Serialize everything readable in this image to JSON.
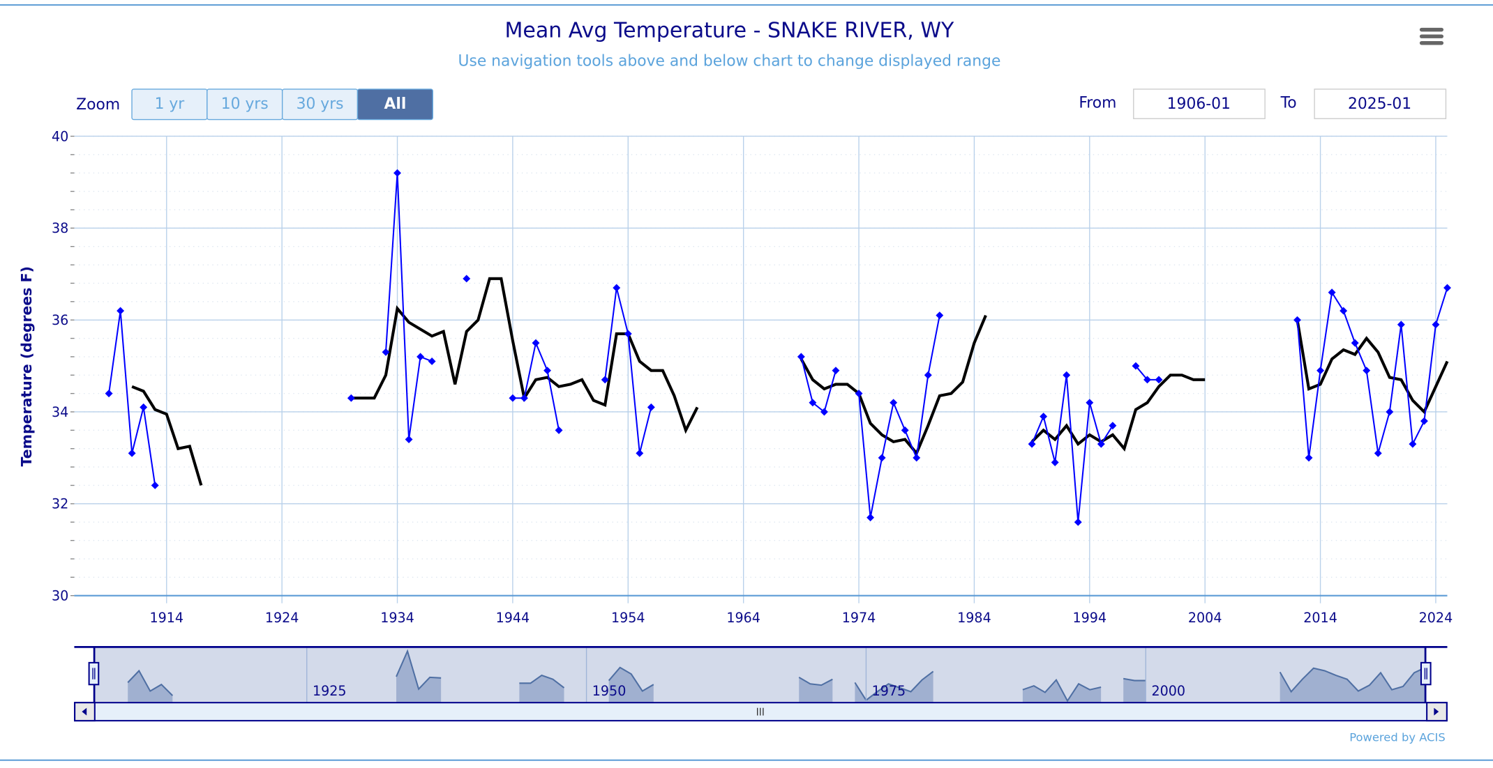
{
  "chart_data": {
    "type": "line",
    "title": "Mean Avg Temperature - SNAKE RIVER, WY",
    "subtitle": "Use navigation tools above and below chart to change displayed range",
    "ylabel": "Temperature (degrees F)",
    "xlabel": "",
    "ylim": [
      30,
      40
    ],
    "xlim": [
      1906,
      2025
    ],
    "yticks": [
      "30",
      "32",
      "34",
      "36",
      "38",
      "40"
    ],
    "xticks": [
      "1914",
      "1924",
      "1934",
      "1944",
      "1954",
      "1964",
      "1974",
      "1984",
      "1994",
      "2004",
      "2014",
      "2024"
    ],
    "grid": true,
    "series": [
      {
        "name": "Annual mean",
        "color": "#0000ff",
        "marker": "diamond",
        "segments": [
          [
            [
              1909,
              34.4
            ],
            [
              1910,
              36.2
            ],
            [
              1911,
              33.1
            ],
            [
              1912,
              34.1
            ],
            [
              1913,
              32.4
            ]
          ],
          [
            [
              1930,
              34.3
            ]
          ],
          [
            [
              1933,
              35.3
            ],
            [
              1934,
              39.2
            ],
            [
              1935,
              33.4
            ],
            [
              1936,
              35.2
            ],
            [
              1937,
              35.1
            ]
          ],
          [
            [
              1940,
              36.9
            ]
          ],
          [
            [
              1944,
              34.3
            ],
            [
              1945,
              34.3
            ],
            [
              1946,
              35.5
            ],
            [
              1947,
              34.9
            ],
            [
              1948,
              33.6
            ]
          ],
          [
            [
              1952,
              34.7
            ],
            [
              1953,
              36.7
            ],
            [
              1954,
              35.7
            ],
            [
              1955,
              33.1
            ],
            [
              1956,
              34.1
            ]
          ],
          [
            [
              1969,
              35.2
            ],
            [
              1970,
              34.2
            ],
            [
              1971,
              34.0
            ],
            [
              1972,
              34.9
            ]
          ],
          [
            [
              1974,
              34.4
            ],
            [
              1975,
              31.7
            ],
            [
              1976,
              33.0
            ],
            [
              1977,
              34.2
            ],
            [
              1978,
              33.6
            ],
            [
              1979,
              33.0
            ],
            [
              1980,
              34.8
            ],
            [
              1981,
              36.1
            ]
          ],
          [
            [
              1989,
              33.3
            ],
            [
              1990,
              33.9
            ],
            [
              1991,
              32.9
            ],
            [
              1992,
              34.8
            ],
            [
              1993,
              31.6
            ],
            [
              1994,
              34.2
            ],
            [
              1995,
              33.3
            ],
            [
              1996,
              33.7
            ]
          ],
          [
            [
              1998,
              35.0
            ],
            [
              1999,
              34.7
            ],
            [
              2000,
              34.7
            ]
          ],
          [
            [
              2012,
              36.0
            ],
            [
              2013,
              33.0
            ],
            [
              2014,
              34.9
            ],
            [
              2015,
              36.6
            ],
            [
              2016,
              36.2
            ],
            [
              2017,
              35.5
            ],
            [
              2018,
              34.9
            ],
            [
              2019,
              33.1
            ],
            [
              2020,
              34.0
            ],
            [
              2021,
              35.9
            ],
            [
              2022,
              33.3
            ],
            [
              2023,
              33.8
            ],
            [
              2024,
              35.9
            ],
            [
              2025,
              36.7
            ]
          ]
        ]
      },
      {
        "name": "Running mean",
        "color": "#000000",
        "marker": "none",
        "segments": [
          [
            [
              1911,
              34.55
            ],
            [
              1912,
              34.45
            ],
            [
              1913,
              34.05
            ],
            [
              1914,
              33.95
            ],
            [
              1915,
              33.2
            ],
            [
              1916,
              33.25
            ],
            [
              1917,
              32.4
            ]
          ],
          [
            [
              1930,
              34.3
            ],
            [
              1931,
              34.3
            ],
            [
              1932,
              34.3
            ],
            [
              1933,
              34.8
            ],
            [
              1934,
              36.25
            ],
            [
              1935,
              35.95
            ],
            [
              1936,
              35.8
            ],
            [
              1937,
              35.65
            ],
            [
              1938,
              35.75
            ],
            [
              1939,
              34.6
            ],
            [
              1940,
              35.75
            ],
            [
              1941,
              36.0
            ],
            [
              1942,
              36.9
            ],
            [
              1943,
              36.9
            ],
            [
              1944,
              35.55
            ],
            [
              1945,
              34.3
            ],
            [
              1946,
              34.7
            ],
            [
              1947,
              34.75
            ],
            [
              1948,
              34.55
            ],
            [
              1949,
              34.6
            ],
            [
              1950,
              34.7
            ],
            [
              1951,
              34.25
            ],
            [
              1952,
              34.15
            ],
            [
              1953,
              35.7
            ],
            [
              1954,
              35.7
            ],
            [
              1955,
              35.1
            ],
            [
              1956,
              34.9
            ],
            [
              1957,
              34.9
            ],
            [
              1958,
              34.35
            ],
            [
              1959,
              33.6
            ],
            [
              1960,
              34.1
            ]
          ],
          [
            [
              1969,
              35.15
            ],
            [
              1970,
              34.7
            ],
            [
              1971,
              34.5
            ],
            [
              1972,
              34.6
            ],
            [
              1973,
              34.6
            ],
            [
              1974,
              34.4
            ],
            [
              1975,
              33.75
            ],
            [
              1976,
              33.5
            ],
            [
              1977,
              33.35
            ],
            [
              1978,
              33.4
            ],
            [
              1979,
              33.1
            ],
            [
              1980,
              33.7
            ],
            [
              1981,
              34.35
            ],
            [
              1982,
              34.4
            ],
            [
              1983,
              34.65
            ],
            [
              1984,
              35.5
            ],
            [
              1985,
              36.1
            ]
          ],
          [
            [
              1989,
              33.35
            ],
            [
              1990,
              33.6
            ],
            [
              1991,
              33.4
            ],
            [
              1992,
              33.7
            ],
            [
              1993,
              33.3
            ],
            [
              1994,
              33.5
            ],
            [
              1995,
              33.35
            ],
            [
              1996,
              33.5
            ],
            [
              1997,
              33.2
            ],
            [
              1998,
              34.05
            ],
            [
              1999,
              34.2
            ],
            [
              2000,
              34.55
            ],
            [
              2001,
              34.8
            ],
            [
              2002,
              34.8
            ],
            [
              2003,
              34.7
            ],
            [
              2004,
              34.7
            ]
          ],
          [
            [
              2012,
              36.0
            ],
            [
              2013,
              34.5
            ],
            [
              2014,
              34.6
            ],
            [
              2015,
              35.15
            ],
            [
              2016,
              35.35
            ],
            [
              2017,
              35.25
            ],
            [
              2018,
              35.6
            ],
            [
              2019,
              35.3
            ],
            [
              2020,
              34.75
            ],
            [
              2021,
              34.7
            ],
            [
              2022,
              34.25
            ],
            [
              2023,
              34.0
            ],
            [
              2024,
              34.55
            ],
            [
              2025,
              35.1
            ]
          ]
        ]
      }
    ],
    "navigator": {
      "labels": [
        "1925",
        "1950",
        "1975",
        "2000"
      ],
      "label_years": [
        1925,
        1950,
        1975,
        2000
      ],
      "range": [
        1906,
        2025
      ]
    }
  },
  "toolbar": {
    "zoom_label": "Zoom",
    "buttons": [
      "1 yr",
      "10 yrs",
      "30 yrs",
      "All"
    ],
    "active_button": "All",
    "from_label": "From",
    "from_value": "1906-01",
    "to_label": "To",
    "to_value": "2025-01"
  },
  "credits": "Powered by ACIS",
  "colors": {
    "title": "#0b0b8a",
    "subtitle": "#5ba3dc",
    "grid": "#b8d0ea",
    "button_active": "#4f6fa3",
    "button_bg": "#e6f0fa",
    "navigator_fill": "#a0b0d0"
  }
}
